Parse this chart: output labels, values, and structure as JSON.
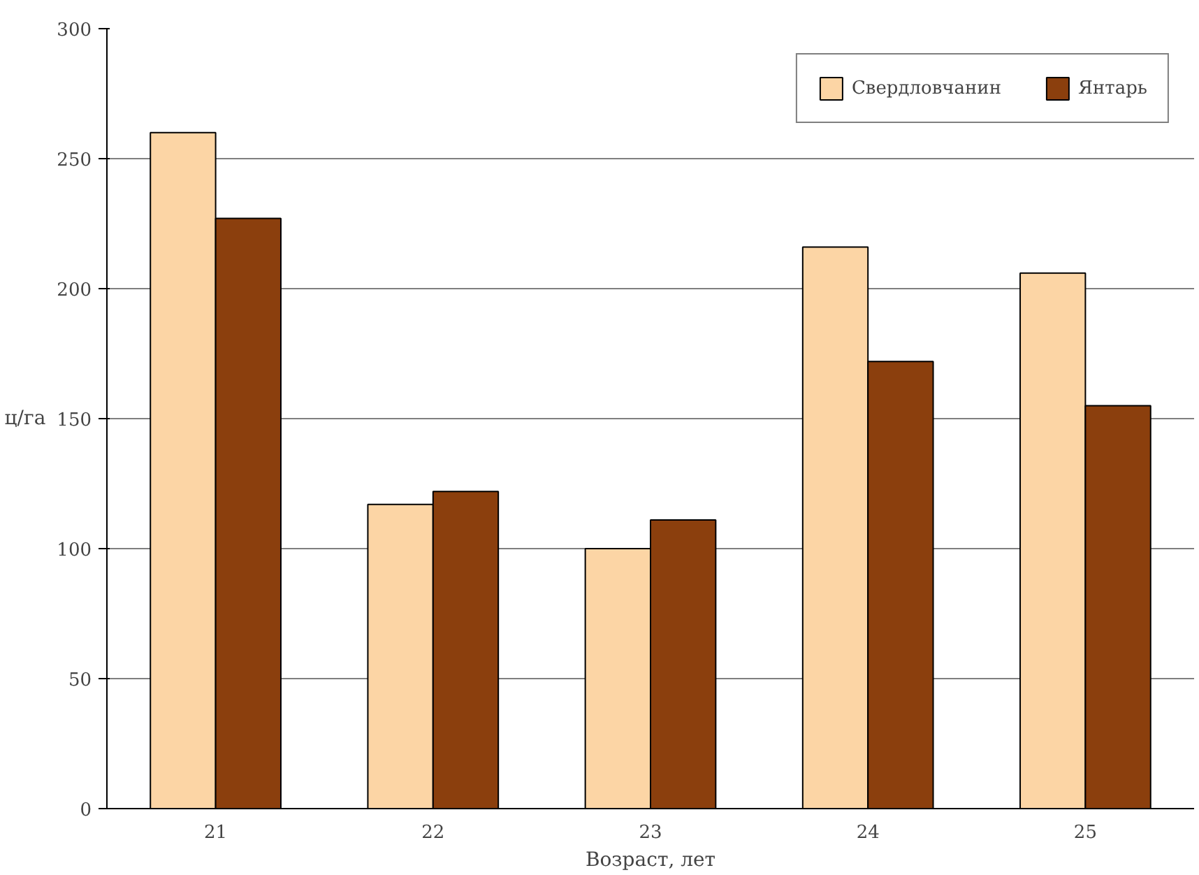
{
  "chart_data": {
    "type": "bar",
    "xlabel": "Возраст, лет",
    "ylabel": "ц/га",
    "categories": [
      "21",
      "22",
      "23",
      "24",
      "25"
    ],
    "series": [
      {
        "name": "Свердловчанин",
        "color": "#fcd5a5",
        "values": [
          260,
          117,
          100,
          216,
          206
        ]
      },
      {
        "name": "Янтарь",
        "color": "#8b3f0d",
        "values": [
          227,
          122,
          111,
          172,
          155
        ]
      }
    ],
    "ylim": [
      0,
      300
    ],
    "yticks": [
      0,
      50,
      100,
      150,
      200,
      250,
      300
    ],
    "grid": "y",
    "legend": "top right"
  }
}
